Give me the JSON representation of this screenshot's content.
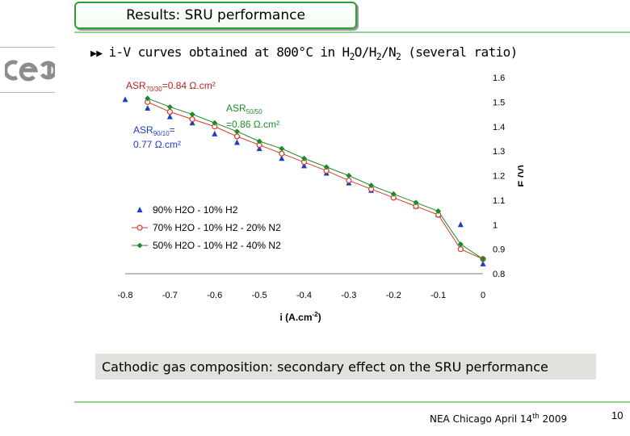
{
  "slide": {
    "title": "Results: SRU performance",
    "bullet_prefix": "i-V curves obtained at 800°C in H",
    "bullet_sub1": "2",
    "bullet_mid1": "O/H",
    "bullet_sub2": "2",
    "bullet_mid2": "/N",
    "bullet_sub3": "2",
    "bullet_suffix": " (several ratio)",
    "caption": "Cathodic gas composition: secondary effect on the SRU performance",
    "footer_pre": "NEA Chicago April 14",
    "footer_sup": "th",
    "footer_post": " 2009",
    "page_number": "10",
    "logo_text": "cea",
    "colors": {
      "accent_green": "#2e9e2e",
      "caption_bg": "#dfe2dd"
    }
  },
  "chart_data": {
    "type": "line",
    "xlabel_main": "i (A.cm",
    "xlabel_sup": "-2",
    "xlabel_end": ")",
    "ylabel": "E (V)",
    "xlim": [
      -0.8,
      0
    ],
    "ylim": [
      0.8,
      1.6
    ],
    "x_ticks": [
      "-0.8",
      "-0.7",
      "-0.6",
      "-0.5",
      "-0.4",
      "-0.3",
      "-0.2",
      "-0.1",
      "0"
    ],
    "y_ticks": [
      "1.6",
      "1.5",
      "1.4",
      "1.3",
      "1.2",
      "1.1",
      "1",
      "0.9",
      "0.8"
    ],
    "annotations": {
      "a1_main": "ASR",
      "a1_sub": "70/30",
      "a1_rest": "=0.84 Ω.cm²",
      "a2_main": "ASR",
      "a2_sub": "50/50",
      "a2_rest": "=0.86 Ω.cm²",
      "a3_main": "ASR",
      "a3_sub": "90/10",
      "a3_rest": "=",
      "a3_line2": "0.77 Ω.cm²"
    },
    "series": [
      {
        "name": "90% H2O - 10% H2",
        "marker": "triangle",
        "color": "#1f3fbf",
        "x": [
          -0.8,
          -0.75,
          -0.7,
          -0.65,
          -0.6,
          -0.55,
          -0.5,
          -0.45,
          -0.4,
          -0.35,
          -0.3,
          -0.25,
          -0.2,
          -0.15,
          -0.1,
          -0.05,
          0.0
        ],
        "y": [
          1.51,
          1.475,
          1.44,
          1.415,
          1.37,
          1.335,
          1.31,
          1.27,
          1.24,
          1.21,
          1.17,
          1.14,
          1.115,
          1.075,
          1.04,
          1.0,
          0.84
        ]
      },
      {
        "name": "70% H2O - 10% H2 - 20% N2",
        "marker": "circle",
        "color": "#d43a2a",
        "x": [
          -0.75,
          -0.7,
          -0.65,
          -0.6,
          -0.55,
          -0.5,
          -0.45,
          -0.4,
          -0.35,
          -0.3,
          -0.25,
          -0.2,
          -0.15,
          -0.1,
          -0.05,
          0.0
        ],
        "y": [
          1.5,
          1.46,
          1.43,
          1.4,
          1.36,
          1.325,
          1.29,
          1.255,
          1.22,
          1.18,
          1.145,
          1.11,
          1.075,
          1.04,
          0.9,
          0.86
        ]
      },
      {
        "name": "50% H2O - 10% H2 - 40% N2",
        "marker": "diamond",
        "color": "#1f8a2a",
        "x": [
          -0.75,
          -0.7,
          -0.65,
          -0.6,
          -0.55,
          -0.5,
          -0.45,
          -0.4,
          -0.35,
          -0.3,
          -0.25,
          -0.2,
          -0.15,
          -0.1,
          -0.05,
          0.0
        ],
        "y": [
          1.515,
          1.48,
          1.45,
          1.415,
          1.38,
          1.34,
          1.31,
          1.27,
          1.235,
          1.2,
          1.16,
          1.125,
          1.09,
          1.055,
          0.92,
          0.86
        ]
      }
    ],
    "legend_position": "lower-left"
  }
}
